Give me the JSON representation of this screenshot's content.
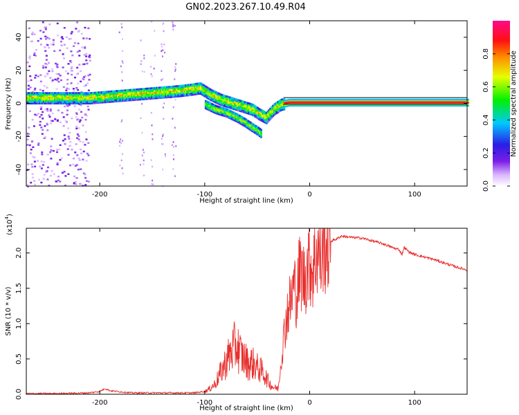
{
  "title": "GN02.2023.267.10.49.R04",
  "colors": {
    "snr_line": "#e8302e",
    "background": "#ffffff",
    "axes": "#000000"
  },
  "chart_data": [
    {
      "type": "heatmap",
      "title": "GN02.2023.267.10.49.R04",
      "xlabel": "Height of straight line (km)",
      "ylabel": "Frequency (Hz)",
      "xlim": [
        -270,
        150
      ],
      "ylim": [
        -50,
        50
      ],
      "xticks": [
        -200,
        -100,
        0,
        100
      ],
      "yticks": [
        -40,
        -20,
        0,
        20,
        40
      ],
      "colorbar": {
        "label": "Normalized spectral amplitude",
        "range": [
          0,
          1
        ],
        "ticks": [
          0.0,
          0.2,
          0.4,
          0.6,
          0.8
        ],
        "colormap": "rainbow (white → purple → blue → cyan → green → yellow → orange → red → magenta)"
      },
      "ridge": {
        "description": "Dominant Doppler-frequency trace",
        "x": [
          -270,
          -250,
          -230,
          -210,
          -190,
          -170,
          -150,
          -130,
          -115,
          -105,
          -95,
          -85,
          -75,
          -65,
          -55,
          -48,
          -42,
          -35,
          -28,
          -20,
          -10,
          0,
          20,
          50,
          80,
          100,
          150
        ],
        "y": [
          4,
          4,
          4,
          4,
          5,
          6,
          7,
          8,
          9,
          10,
          6,
          3,
          1,
          -1,
          -3,
          -6,
          -8,
          -3,
          0,
          1,
          1,
          1,
          1,
          1,
          1,
          1,
          1
        ]
      },
      "branch": {
        "description": "Secondary trace below the main ridge",
        "x": [
          -100,
          -90,
          -80,
          -70,
          -62,
          -55,
          -50,
          -46
        ],
        "y": [
          0,
          -3,
          -5,
          -8,
          -11,
          -14,
          -16,
          -18
        ]
      }
    },
    {
      "type": "line",
      "xlabel": "Height of straight line (km)",
      "ylabel": "SNR (10 * v/v)",
      "multiplier_label": "(x10",
      "multiplier_exponent": "4",
      "multiplier_close": ")",
      "xlim": [
        -270,
        150
      ],
      "ylim": [
        0,
        2.35
      ],
      "xticks": [
        -200,
        -100,
        0,
        100
      ],
      "yticks": [
        0.0,
        0.5,
        1.0,
        1.5,
        2.0
      ],
      "series": [
        {
          "x": [
            -270,
            -240,
            -210,
            -200,
            -195,
            -190,
            -170,
            -150,
            -130,
            -110,
            -100,
            -95,
            -90,
            -85,
            -80,
            -75,
            -70,
            -65,
            -62,
            -58,
            -55,
            -50,
            -45,
            -42,
            -38,
            -35,
            -30,
            -27,
            -24,
            -22,
            -20,
            -18,
            -15,
            -12,
            -10,
            -8,
            -5,
            -2,
            0,
            3,
            6,
            9,
            11,
            13,
            15,
            18,
            22,
            26,
            30,
            40,
            50,
            60,
            70,
            80,
            85,
            88,
            90,
            95,
            100,
            110,
            120,
            130,
            140,
            150
          ],
          "values": [
            0.01,
            0.01,
            0.02,
            0.04,
            0.08,
            0.05,
            0.02,
            0.02,
            0.02,
            0.02,
            0.04,
            0.08,
            0.15,
            0.3,
            0.45,
            0.6,
            0.7,
            0.55,
            0.5,
            0.42,
            0.45,
            0.38,
            0.32,
            0.25,
            0.15,
            0.1,
            0.08,
            0.5,
            0.9,
            1.1,
            1.25,
            1.3,
            1.55,
            1.4,
            1.7,
            1.75,
            1.6,
            1.85,
            1.9,
            1.75,
            2.0,
            2.05,
            1.85,
            2.2,
            2.1,
            2.15,
            2.18,
            2.2,
            2.24,
            2.22,
            2.21,
            2.17,
            2.13,
            2.07,
            2.05,
            1.98,
            2.08,
            2.01,
            1.98,
            1.94,
            1.9,
            1.85,
            1.8,
            1.76
          ]
        }
      ]
    }
  ]
}
